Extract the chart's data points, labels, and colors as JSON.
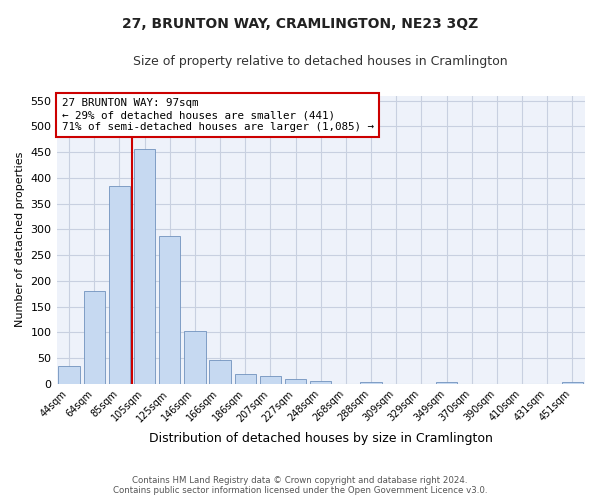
{
  "title": "27, BRUNTON WAY, CRAMLINGTON, NE23 3QZ",
  "subtitle": "Size of property relative to detached houses in Cramlington",
  "xlabel": "Distribution of detached houses by size in Cramlington",
  "ylabel": "Number of detached properties",
  "footer_line1": "Contains HM Land Registry data © Crown copyright and database right 2024.",
  "footer_line2": "Contains public sector information licensed under the Open Government Licence v3.0.",
  "annotation_line1": "27 BRUNTON WAY: 97sqm",
  "annotation_line2": "← 29% of detached houses are smaller (441)",
  "annotation_line3": "71% of semi-detached houses are larger (1,085) →",
  "bar_color": "#c6d9f1",
  "bar_edge_color": "#7092be",
  "vline_color": "#cc0000",
  "vline_x_index": 3,
  "categories": [
    "44sqm",
    "64sqm",
    "85sqm",
    "105sqm",
    "125sqm",
    "146sqm",
    "166sqm",
    "186sqm",
    "207sqm",
    "227sqm",
    "248sqm",
    "268sqm",
    "288sqm",
    "309sqm",
    "329sqm",
    "349sqm",
    "370sqm",
    "390sqm",
    "410sqm",
    "431sqm",
    "451sqm"
  ],
  "values": [
    34,
    181,
    384,
    456,
    287,
    103,
    47,
    20,
    15,
    9,
    5,
    0,
    4,
    0,
    0,
    4,
    0,
    0,
    0,
    0,
    4
  ],
  "ylim": [
    0,
    560
  ],
  "yticks": [
    0,
    50,
    100,
    150,
    200,
    250,
    300,
    350,
    400,
    450,
    500,
    550
  ],
  "grid_color": "#c8d0e0",
  "background_color": "#ffffff",
  "plot_bg_color": "#eef2fa"
}
